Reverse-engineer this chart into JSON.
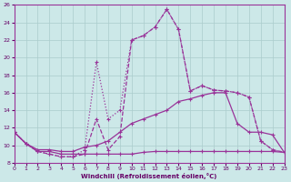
{
  "xlabel": "Windchill (Refroidissement éolien,°C)",
  "xlim": [
    0,
    23
  ],
  "ylim": [
    8,
    26
  ],
  "xticks": [
    0,
    1,
    2,
    3,
    4,
    5,
    6,
    7,
    8,
    9,
    10,
    11,
    12,
    13,
    14,
    15,
    16,
    17,
    18,
    19,
    20,
    21,
    22,
    23
  ],
  "yticks": [
    8,
    10,
    12,
    14,
    16,
    18,
    20,
    22,
    24,
    26
  ],
  "bg_color": "#cce8e8",
  "grid_color": "#aacccc",
  "line_color": "#993399",
  "curve1_x": [
    0,
    1,
    2,
    3,
    4,
    5,
    6,
    7,
    8,
    9,
    10,
    11,
    12,
    13,
    14,
    15,
    16,
    17,
    18,
    19,
    20,
    21,
    22,
    23
  ],
  "curve1_y": [
    11.5,
    10.2,
    9.3,
    9.0,
    8.7,
    8.7,
    9.0,
    13.0,
    9.5,
    11.0,
    22.0,
    22.5,
    23.5,
    25.5,
    23.2,
    16.2,
    16.8,
    16.3,
    16.2,
    16.0,
    15.5,
    10.5,
    9.5,
    9.2
  ],
  "curve2_x": [
    0,
    1,
    2,
    3,
    4,
    5,
    6,
    7,
    8,
    9,
    10,
    11,
    12,
    13,
    14,
    15,
    16,
    17,
    18,
    19,
    20,
    21,
    22,
    23
  ],
  "curve2_y": [
    11.5,
    10.2,
    9.3,
    9.0,
    8.7,
    8.7,
    9.5,
    19.5,
    13.0,
    14.0,
    22.0,
    22.5,
    23.5,
    25.5,
    23.2,
    16.2,
    16.8,
    16.3,
    16.2,
    16.0,
    15.5,
    10.5,
    9.5,
    9.2
  ],
  "curve3_x": [
    0,
    1,
    2,
    3,
    4,
    5,
    6,
    7,
    8,
    9,
    10,
    11,
    12,
    13,
    14,
    15,
    16,
    17,
    18,
    19,
    20,
    21,
    22,
    23
  ],
  "curve3_y": [
    11.5,
    10.2,
    9.5,
    9.5,
    9.3,
    9.3,
    9.8,
    10.0,
    10.5,
    11.5,
    12.5,
    13.0,
    13.5,
    14.0,
    15.0,
    15.3,
    15.7,
    16.0,
    16.0,
    12.5,
    11.5,
    11.5,
    11.2,
    9.2
  ],
  "curve4_x": [
    0,
    1,
    2,
    3,
    4,
    5,
    6,
    7,
    8,
    9,
    10,
    11,
    12,
    13,
    14,
    15,
    16,
    17,
    18,
    19,
    20,
    21,
    22,
    23
  ],
  "curve4_y": [
    11.5,
    10.2,
    9.3,
    9.3,
    9.0,
    9.0,
    9.0,
    9.0,
    9.0,
    9.0,
    9.0,
    9.2,
    9.3,
    9.3,
    9.3,
    9.3,
    9.3,
    9.3,
    9.3,
    9.3,
    9.3,
    9.3,
    9.3,
    9.2
  ]
}
